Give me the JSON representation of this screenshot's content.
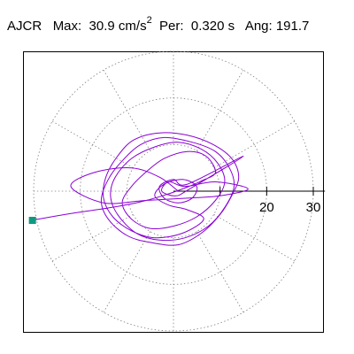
{
  "header": {
    "station": "AJCR",
    "max_label": "Max:",
    "max_value": "30.9 cm/s",
    "max_exp": "2",
    "per_label": "Per:",
    "per_value": "0.320 s",
    "ang_label": "Ang:",
    "ang_value": "191.7"
  },
  "chart_data": {
    "type": "polar-orbit",
    "title": "",
    "radial_ticks": [
      20,
      30
    ],
    "rings": [
      10,
      20,
      30
    ],
    "spokes_deg": [
      0,
      30,
      60,
      90,
      120,
      150,
      180,
      210,
      240,
      270,
      300,
      330
    ],
    "rmax": 30,
    "max_amplitude": 30.9,
    "max_angle_deg": 191.7,
    "series": [
      {
        "color": "#8a00d4",
        "points": [
          [
            -30.2,
            -6.2
          ],
          [
            -22,
            -4.8
          ],
          [
            -14,
            -3.6
          ],
          [
            -8,
            -2.5
          ],
          [
            -3,
            -1.2
          ],
          [
            2,
            0.5
          ],
          [
            6,
            2.2
          ],
          [
            9,
            4
          ],
          [
            7,
            7.5
          ],
          [
            3,
            8.5
          ],
          [
            -2,
            7
          ],
          [
            -6,
            4
          ],
          [
            -9,
            1
          ],
          [
            -11,
            -2.5
          ],
          [
            -9,
            -6
          ],
          [
            -5,
            -8
          ],
          [
            0,
            -7.5
          ],
          [
            5,
            -5.5
          ],
          [
            9,
            -2
          ],
          [
            11,
            2
          ],
          [
            9.5,
            6
          ],
          [
            6,
            9
          ],
          [
            1,
            10.5
          ],
          [
            -4,
            9.5
          ],
          [
            -9,
            7
          ],
          [
            -12.5,
            3
          ],
          [
            -13.5,
            -1
          ],
          [
            -12,
            -5
          ],
          [
            -8,
            -9
          ],
          [
            -3,
            -10.5
          ],
          [
            2.5,
            -10
          ],
          [
            7.5,
            -7.5
          ],
          [
            11,
            -3.5
          ],
          [
            13,
            1
          ],
          [
            12,
            5
          ],
          [
            9,
            8.5
          ],
          [
            4,
            10.5
          ],
          [
            -2,
            11.5
          ],
          [
            -7,
            10
          ],
          [
            -11,
            6.5
          ],
          [
            -14,
            2.5
          ],
          [
            -15.5,
            -2
          ],
          [
            -14,
            -6
          ],
          [
            -10,
            -9.5
          ],
          [
            -5,
            -11
          ],
          [
            1,
            -11.5
          ],
          [
            6,
            -9
          ],
          [
            10,
            -5
          ],
          [
            12.5,
            -1
          ],
          [
            14,
            3
          ],
          [
            12.5,
            7
          ],
          [
            8.5,
            10
          ],
          [
            3,
            12
          ],
          [
            -3,
            12.5
          ],
          [
            -8.5,
            11
          ],
          [
            -12,
            7.5
          ],
          [
            -14.5,
            3
          ],
          [
            -15,
            -1.5
          ],
          [
            -13,
            -5.5
          ],
          [
            -9,
            -8.5
          ],
          [
            -4,
            -10
          ],
          [
            2,
            -9
          ],
          [
            6.5,
            -6
          ],
          [
            3,
            -4
          ],
          [
            -1,
            -3
          ],
          [
            -4,
            -1
          ],
          [
            -2,
            1.5
          ],
          [
            2,
            2.5
          ],
          [
            5,
            1
          ],
          [
            4,
            -1.5
          ],
          [
            1,
            -2.5
          ],
          [
            -2,
            -1.5
          ],
          [
            -3,
            1
          ],
          [
            0,
            2.5
          ],
          [
            3,
            1.5
          ],
          [
            15,
            7.5
          ],
          [
            3.5,
            0.5
          ],
          [
            0.5,
            -1
          ],
          [
            -2.5,
            0
          ],
          [
            -1,
            2
          ],
          [
            2.5,
            1
          ],
          [
            9,
            2
          ],
          [
            16,
            0.5
          ],
          [
            10,
            -1
          ],
          [
            3,
            -1.5
          ],
          [
            -6,
            -2
          ],
          [
            -15,
            -2.5
          ],
          [
            -22,
            1
          ],
          [
            -17,
            4
          ],
          [
            -9,
            5
          ],
          [
            -3,
            3
          ],
          [
            1,
            0
          ]
        ]
      }
    ]
  }
}
